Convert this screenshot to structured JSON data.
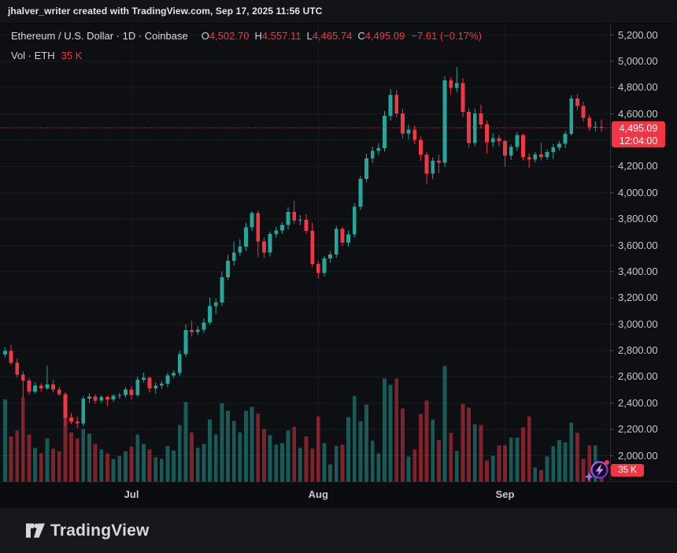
{
  "header": {
    "attribution": "jhalver_writer created with TradingView.com, Sep 17, 2025 11:56 UTC"
  },
  "legend": {
    "title": "Ethereum / U.S. Dollar · 1D · Coinbase",
    "o_label": "O",
    "o_value": "4,502.70",
    "h_label": "H",
    "h_value": "4,557.11",
    "l_label": "L",
    "l_value": "4,465.74",
    "c_label": "C",
    "c_value": "4,495.09",
    "change": "−7.61 (−0.17%)",
    "vol_label": "Vol · ETH",
    "vol_value": "35 K"
  },
  "price_axis": {
    "labels": [
      "5,200.00",
      "5,000.00",
      "4,800.00",
      "4,600.00",
      "4,200.00",
      "4,000.00",
      "3,800.00",
      "3,600.00",
      "3,400.00",
      "3,200.00",
      "3,000.00",
      "2,800.00",
      "2,600.00",
      "2,400.00",
      "2,200.00",
      "2,000.00"
    ],
    "badge": {
      "price_text": "4,495.09",
      "time_text": "12:04:00"
    }
  },
  "time_axis": {
    "labels": [
      "Jul",
      "Aug",
      "Sep"
    ]
  },
  "volume_badge": {
    "text": "35 K"
  },
  "spark_button": {
    "icon": "lightning-bolt-in-circle with sparkle and red notification dot"
  },
  "footer": {
    "brand": "TradingView"
  },
  "colors": {
    "up": "#26a69a",
    "down": "#f23645",
    "badge": "#f23645",
    "grid": "rgba(242,245,250,0.06)",
    "axis_line": "#2a2e39",
    "tick": "#4a4e57",
    "background": "#0d0f13"
  },
  "chart_data": {
    "type": "candlestick_with_volume",
    "symbol": "Ethereum / U.S. Dollar",
    "exchange": "Coinbase",
    "interval": "1D",
    "last_price": 4495.09,
    "last_bar_time": "12:04:00",
    "current_volume_k": 35,
    "price_gridline_step": 200,
    "visible_price_range": [
      1800,
      5280
    ],
    "volume_unit": "thousand ETH",
    "columns": [
      "date",
      "open",
      "high",
      "low",
      "close",
      "volume_k"
    ],
    "candles": [
      [
        "Jun 10",
        2770,
        2825,
        2748,
        2798,
        435
      ],
      [
        "Jun 11",
        2798,
        2843,
        2690,
        2708,
        240
      ],
      [
        "Jun 12",
        2708,
        2738,
        2598,
        2618,
        270
      ],
      [
        "Jun 13",
        2618,
        2642,
        2440,
        2572,
        445
      ],
      [
        "Jun 14",
        2572,
        2592,
        2462,
        2488,
        250
      ],
      [
        "Jun 15",
        2488,
        2558,
        2472,
        2532,
        180
      ],
      [
        "Jun 16",
        2532,
        2550,
        2488,
        2512,
        150
      ],
      [
        "Jun 17",
        2512,
        2685,
        2502,
        2542,
        230
      ],
      [
        "Jun 18",
        2542,
        2576,
        2480,
        2502,
        175
      ],
      [
        "Jun 19",
        2502,
        2525,
        2455,
        2468,
        160
      ],
      [
        "Jun 20",
        2468,
        2485,
        2222,
        2290,
        440
      ],
      [
        "Jun 21",
        2290,
        2325,
        2240,
        2262,
        260
      ],
      [
        "Jun 22",
        2262,
        2298,
        2208,
        2245,
        230
      ],
      [
        "Jun 23",
        2245,
        2452,
        2225,
        2435,
        280
      ],
      [
        "Jun 24",
        2435,
        2475,
        2402,
        2448,
        255
      ],
      [
        "Jun 25",
        2448,
        2468,
        2395,
        2420,
        200
      ],
      [
        "Jun 26",
        2420,
        2462,
        2400,
        2445,
        170
      ],
      [
        "Jun 27",
        2445,
        2458,
        2376,
        2428,
        150
      ],
      [
        "Jun 28",
        2428,
        2470,
        2412,
        2455,
        120
      ],
      [
        "Jun 29",
        2455,
        2478,
        2432,
        2462,
        135
      ],
      [
        "Jun 30",
        2462,
        2522,
        2440,
        2502,
        160
      ],
      [
        "Jul 1",
        2502,
        2530,
        2428,
        2462,
        185
      ],
      [
        "Jul 2",
        2462,
        2602,
        2448,
        2578,
        250
      ],
      [
        "Jul 3",
        2578,
        2632,
        2556,
        2592,
        200
      ],
      [
        "Jul 4",
        2592,
        2602,
        2480,
        2512,
        170
      ],
      [
        "Jul 5",
        2512,
        2558,
        2470,
        2532,
        130
      ],
      [
        "Jul 6",
        2532,
        2568,
        2508,
        2548,
        120
      ],
      [
        "Jul 7",
        2548,
        2632,
        2520,
        2612,
        190
      ],
      [
        "Jul 8",
        2612,
        2650,
        2590,
        2630,
        165
      ],
      [
        "Jul 9",
        2630,
        2798,
        2606,
        2772,
        300
      ],
      [
        "Jul 10",
        2772,
        2998,
        2750,
        2955,
        420
      ],
      [
        "Jul 11",
        2955,
        3025,
        2906,
        2942,
        260
      ],
      [
        "Jul 12",
        2942,
        2986,
        2918,
        2958,
        180
      ],
      [
        "Jul 13",
        2958,
        3046,
        2934,
        3012,
        200
      ],
      [
        "Jul 14",
        3012,
        3205,
        2996,
        3138,
        330
      ],
      [
        "Jul 15",
        3138,
        3194,
        3080,
        3165,
        250
      ],
      [
        "Jul 16",
        3165,
        3402,
        3140,
        3358,
        415
      ],
      [
        "Jul 17",
        3358,
        3528,
        3336,
        3482,
        375
      ],
      [
        "Jul 18",
        3482,
        3628,
        3446,
        3545,
        320
      ],
      [
        "Jul 19",
        3545,
        3648,
        3520,
        3592,
        260
      ],
      [
        "Jul 20",
        3592,
        3772,
        3558,
        3739,
        375
      ],
      [
        "Jul 21",
        3739,
        3860,
        3710,
        3845,
        395
      ],
      [
        "Jul 22",
        3845,
        3865,
        3508,
        3630,
        360
      ],
      [
        "Jul 23",
        3630,
        3660,
        3504,
        3545,
        280
      ],
      [
        "Jul 24",
        3545,
        3706,
        3516,
        3687,
        245
      ],
      [
        "Jul 25",
        3687,
        3742,
        3660,
        3715,
        195
      ],
      [
        "Jul 26",
        3715,
        3776,
        3688,
        3755,
        205
      ],
      [
        "Jul 27",
        3755,
        3890,
        3722,
        3855,
        270
      ],
      [
        "Jul 28",
        3855,
        3940,
        3762,
        3790,
        290
      ],
      [
        "Jul 29",
        3790,
        3830,
        3754,
        3796,
        180
      ],
      [
        "Jul 30",
        3796,
        3838,
        3688,
        3710,
        240
      ],
      [
        "Jul 31",
        3710,
        3774,
        3434,
        3460,
        175
      ],
      [
        "Aug 1",
        3460,
        3480,
        3349,
        3390,
        345
      ],
      [
        "Aug 2",
        3390,
        3520,
        3364,
        3500,
        204
      ],
      [
        "Aug 3",
        3500,
        3556,
        3468,
        3530,
        92
      ],
      [
        "Aug 4",
        3530,
        3750,
        3506,
        3725,
        190
      ],
      [
        "Aug 5",
        3725,
        3740,
        3594,
        3620,
        196
      ],
      [
        "Aug 6",
        3620,
        3712,
        3590,
        3685,
        342
      ],
      [
        "Aug 7",
        3685,
        3920,
        3660,
        3895,
        455
      ],
      [
        "Aug 8",
        3895,
        4130,
        3868,
        4105,
        320
      ],
      [
        "Aug 9",
        4105,
        4298,
        4080,
        4262,
        408
      ],
      [
        "Aug 10",
        4262,
        4350,
        4228,
        4320,
        217
      ],
      [
        "Aug 11",
        4320,
        4378,
        4286,
        4340,
        150
      ],
      [
        "Aug 12",
        4340,
        4622,
        4314,
        4585,
        546
      ],
      [
        "Aug 13",
        4585,
        4790,
        4550,
        4745,
        512
      ],
      [
        "Aug 14",
        4745,
        4780,
        4574,
        4605,
        546
      ],
      [
        "Aug 15",
        4605,
        4640,
        4414,
        4450,
        387
      ],
      [
        "Aug 16",
        4450,
        4518,
        4406,
        4480,
        133
      ],
      [
        "Aug 17",
        4480,
        4512,
        4368,
        4402,
        171
      ],
      [
        "Aug 18",
        4402,
        4428,
        4244,
        4290,
        358
      ],
      [
        "Aug 19",
        4290,
        4310,
        4069,
        4145,
        429
      ],
      [
        "Aug 20",
        4145,
        4270,
        4104,
        4245,
        329
      ],
      [
        "Aug 21",
        4245,
        4290,
        4150,
        4230,
        221
      ],
      [
        "Aug 22",
        4230,
        4885,
        4198,
        4855,
        612
      ],
      [
        "Aug 23",
        4855,
        4880,
        4744,
        4800,
        258
      ],
      [
        "Aug 24",
        4800,
        4956,
        4764,
        4835,
        163
      ],
      [
        "Aug 25",
        4835,
        4870,
        4578,
        4615,
        413
      ],
      [
        "Aug 26",
        4615,
        4645,
        4344,
        4380,
        392
      ],
      [
        "Aug 27",
        4380,
        4640,
        4354,
        4605,
        304
      ],
      [
        "Aug 28",
        4605,
        4670,
        4488,
        4520,
        300
      ],
      [
        "Aug 29",
        4520,
        4550,
        4300,
        4385,
        113
      ],
      [
        "Aug 30",
        4385,
        4455,
        4348,
        4415,
        137
      ],
      [
        "Aug 31",
        4415,
        4440,
        4354,
        4395,
        192
      ],
      [
        "Sep 1",
        4395,
        4402,
        4198,
        4284,
        192
      ],
      [
        "Sep 2",
        4284,
        4368,
        4250,
        4350,
        233
      ],
      [
        "Sep 3",
        4350,
        4460,
        4320,
        4438,
        233
      ],
      [
        "Sep 4",
        4438,
        4452,
        4248,
        4272,
        287
      ],
      [
        "Sep 5",
        4272,
        4300,
        4188,
        4254,
        346
      ],
      [
        "Sep 6",
        4254,
        4312,
        4230,
        4292,
        75
      ],
      [
        "Sep 7",
        4292,
        4380,
        4246,
        4270,
        63
      ],
      [
        "Sep 8",
        4270,
        4330,
        4250,
        4310,
        133
      ],
      [
        "Sep 9",
        4310,
        4370,
        4256,
        4346,
        187
      ],
      [
        "Sep 10",
        4346,
        4392,
        4322,
        4372,
        220
      ],
      [
        "Sep 11",
        4372,
        4470,
        4340,
        4448,
        208
      ],
      [
        "Sep 12",
        4448,
        4742,
        4436,
        4718,
        313
      ],
      [
        "Sep 13",
        4718,
        4750,
        4628,
        4660,
        258
      ],
      [
        "Sep 14",
        4660,
        4692,
        4544,
        4570,
        121
      ],
      [
        "Sep 15",
        4570,
        4592,
        4474,
        4500,
        192
      ],
      [
        "Sep 16",
        4500,
        4544,
        4468,
        4503,
        192
      ],
      [
        "Sep 17",
        4502.7,
        4557.11,
        4465.74,
        4495.09,
        35
      ]
    ]
  }
}
